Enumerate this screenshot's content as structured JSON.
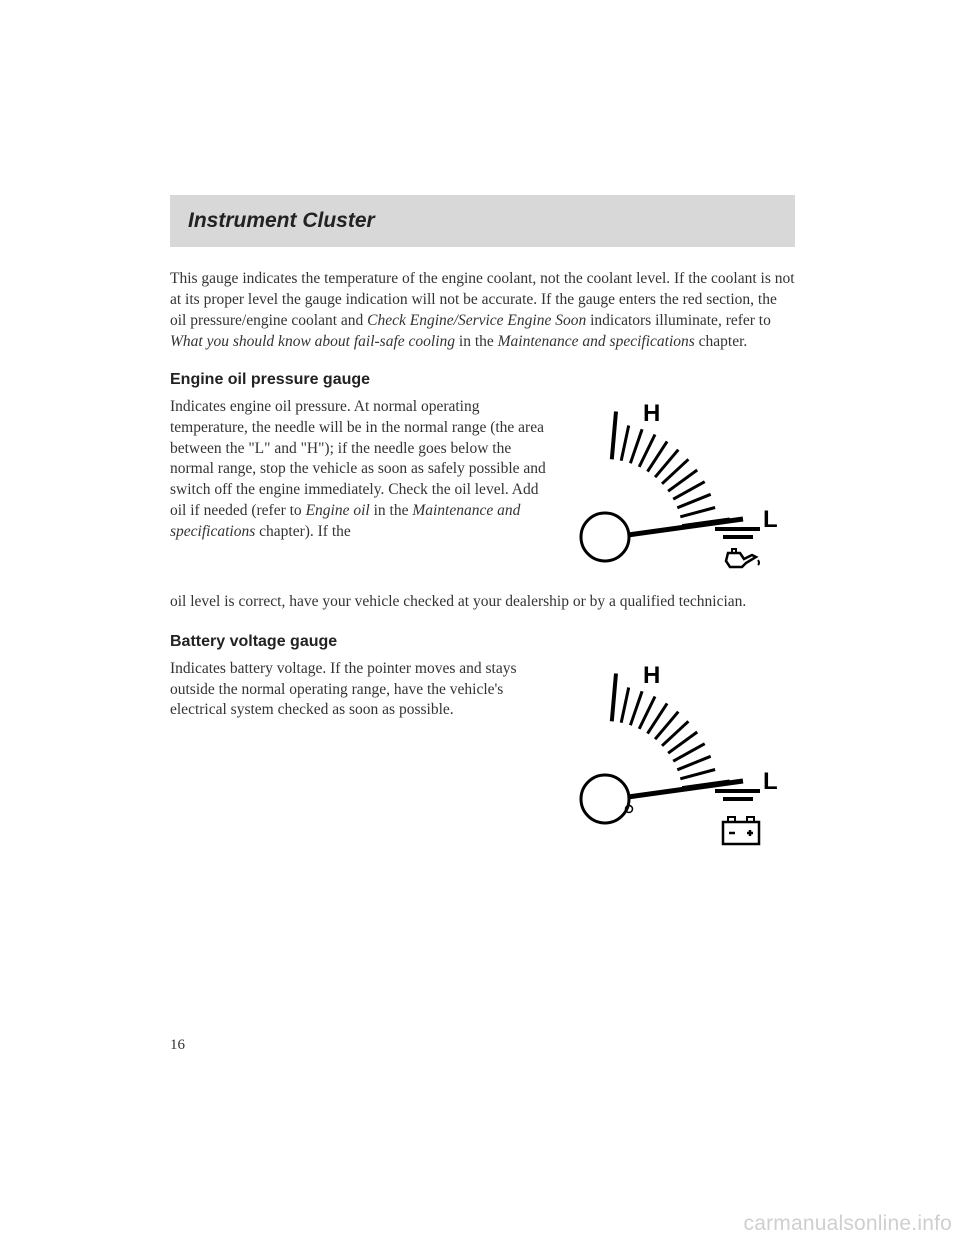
{
  "header": {
    "title": "Instrument Cluster"
  },
  "intro": {
    "text": "This gauge indicates the temperature of the engine coolant, not the coolant level. If the coolant is not at its proper level the gauge indication will not be accurate. If the gauge enters the red section, the oil pressure/engine coolant and ",
    "italic1": "Check Engine/Service Engine Soon",
    "text2": " indicators illuminate, refer to ",
    "italic2": "What you should know about fail-safe cooling",
    "text3": " in the ",
    "italic3": "Maintenance and specifications",
    "text4": " chapter."
  },
  "oil": {
    "heading": "Engine oil pressure gauge",
    "text": "Indicates engine oil pressure. At normal operating temperature, the needle will be in the normal range (the area between the \"L\" and \"H\"); if the needle goes below the normal range, stop the vehicle as soon as safely possible and switch off the engine immediately. Check the oil level. Add oil if needed (refer to ",
    "italic1": "Engine oil",
    "mid": " in the ",
    "italic2": "Maintenance and specifications",
    "text2": " chapter). If the",
    "cont": "oil level is correct, have your vehicle checked at your dealership or by a qualified technician."
  },
  "battery": {
    "heading": "Battery voltage gauge",
    "text": "Indicates battery voltage. If the pointer moves and stays outside the normal operating range, have the vehicle's electrical system checked as soon as possible."
  },
  "gauge": {
    "hi": "H",
    "lo": "L",
    "stroke": "#000000",
    "tick_width": 3,
    "outer_r": 100,
    "inner_r": 78
  },
  "page_number": "16",
  "watermark": "carmanualsonline.info"
}
